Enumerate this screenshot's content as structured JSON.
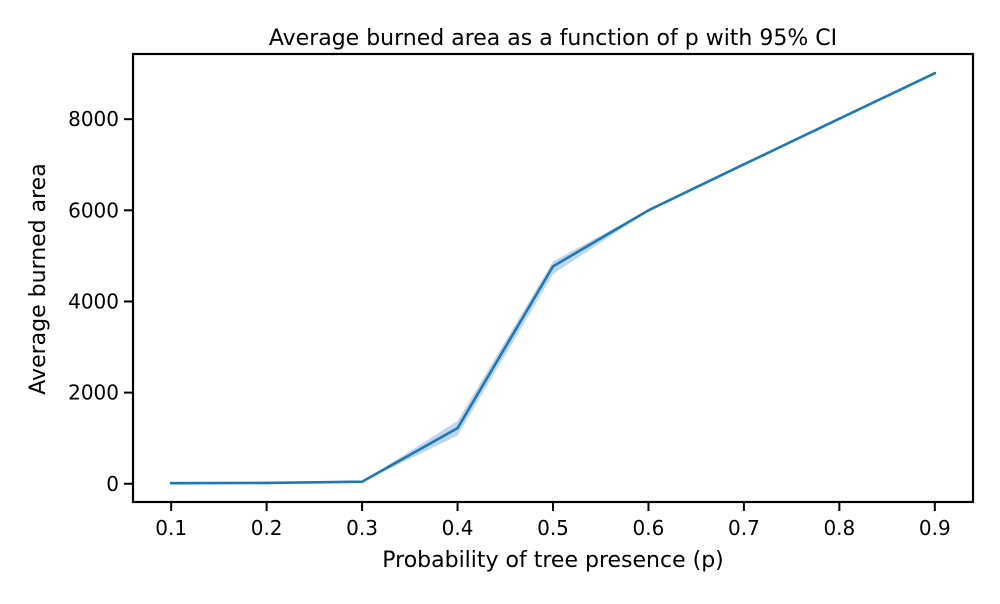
{
  "chart_data": {
    "type": "line",
    "title": "Average burned area as a function of p with 95% CI",
    "xlabel": "Probability of tree presence (p)",
    "ylabel": "Average burned area",
    "x": [
      0.1,
      0.2,
      0.3,
      0.4,
      0.5,
      0.6,
      0.7,
      0.8,
      0.9
    ],
    "series": [
      {
        "values": [
          12,
          18,
          45,
          1220,
          4770,
          6000,
          7010,
          8010,
          9010
        ],
        "ci_lower": [
          10,
          15,
          38,
          1060,
          4600,
          5985,
          7000,
          8000,
          9000
        ],
        "ci_upper": [
          14,
          21,
          52,
          1380,
          4880,
          6015,
          7020,
          8020,
          9020
        ],
        "color": "#1f77b4",
        "band_color": "#a9c8e4"
      }
    ],
    "xlim": [
      0.06,
      0.94
    ],
    "ylim": [
      -400,
      9430
    ],
    "xticks": [
      "0.1",
      "0.2",
      "0.3",
      "0.4",
      "0.5",
      "0.6",
      "0.7",
      "0.8",
      "0.9"
    ],
    "yticks": [
      "0",
      "2000",
      "4000",
      "6000",
      "8000"
    ],
    "grid": false,
    "legend": false
  }
}
